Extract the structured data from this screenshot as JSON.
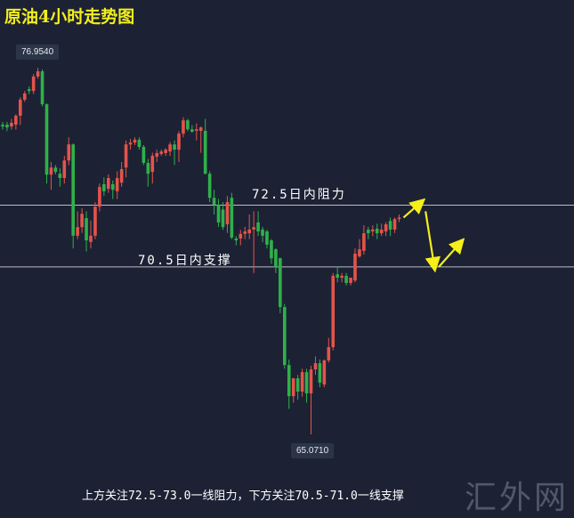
{
  "title": "原油4小时走势图",
  "watermark": "汇外网",
  "footer_note": "上方关注72.5-73.0一线阻力，下方关注70.5-71.0一线支撑",
  "colors": {
    "up": "#e5534b",
    "down": "#2eb14a",
    "arrow": "#f5ef1a",
    "level_line": "#b9bdc6",
    "background": "#1c2234"
  },
  "chart_data": {
    "type": "candlestick",
    "timeframe": "4小时",
    "ylim": [
      62.42,
      79.15
    ],
    "grid": false,
    "high_label": "76.9540",
    "low_label": "65.0710",
    "levels": [
      {
        "value": 72.5,
        "label": "72.5日内阻力"
      },
      {
        "value": 70.5,
        "label": "70.5日内支撑"
      }
    ],
    "projection_arrows": [
      {
        "from": [
          91,
          72.1
        ],
        "to": [
          95,
          72.6
        ]
      },
      {
        "from": [
          96,
          72.3
        ],
        "to": [
          98,
          70.5
        ]
      },
      {
        "from": [
          99,
          70.5
        ],
        "to": [
          104,
          71.3
        ]
      }
    ],
    "ohlc": [
      [
        75.11,
        75.2,
        74.95,
        75.05
      ],
      [
        75.11,
        75.2,
        74.9,
        75.02
      ],
      [
        75.05,
        75.3,
        74.95,
        75.17
      ],
      [
        75.11,
        75.45,
        74.95,
        75.4
      ],
      [
        75.4,
        76.0,
        75.1,
        75.92
      ],
      [
        75.92,
        76.2,
        75.85,
        76.12
      ],
      [
        76.26,
        76.35,
        76.1,
        76.2
      ],
      [
        76.2,
        76.75,
        76.1,
        76.67
      ],
      [
        76.67,
        76.954,
        76.6,
        76.84
      ],
      [
        76.84,
        76.9,
        75.7,
        75.77
      ],
      [
        75.77,
        75.8,
        73.2,
        73.49
      ],
      [
        73.49,
        73.9,
        73.0,
        73.72
      ],
      [
        73.72,
        73.8,
        73.5,
        73.58
      ],
      [
        73.52,
        73.7,
        73.1,
        73.38
      ],
      [
        73.38,
        74.1,
        73.2,
        73.95
      ],
      [
        73.95,
        74.7,
        73.8,
        74.47
      ],
      [
        74.47,
        74.5,
        71.1,
        71.51
      ],
      [
        71.51,
        72.3,
        71.4,
        71.79
      ],
      [
        71.79,
        72.4,
        71.6,
        72.22
      ],
      [
        72.08,
        72.3,
        71.0,
        71.36
      ],
      [
        71.31,
        72.0,
        71.1,
        71.51
      ],
      [
        71.51,
        72.6,
        71.4,
        72.45
      ],
      [
        72.45,
        73.2,
        72.3,
        73.09
      ],
      [
        73.18,
        73.4,
        72.8,
        72.95
      ],
      [
        73.03,
        73.5,
        72.9,
        73.38
      ],
      [
        73.18,
        73.3,
        72.7,
        73.0
      ],
      [
        72.95,
        73.6,
        72.7,
        73.38
      ],
      [
        73.23,
        73.9,
        73.1,
        73.67
      ],
      [
        73.72,
        74.6,
        73.4,
        74.47
      ],
      [
        74.47,
        74.65,
        74.3,
        74.53
      ],
      [
        74.53,
        74.7,
        74.45,
        74.62
      ],
      [
        74.62,
        74.7,
        74.3,
        74.39
      ],
      [
        74.39,
        74.45,
        73.8,
        73.87
      ],
      [
        73.87,
        74.0,
        73.1,
        73.52
      ],
      [
        73.58,
        74.2,
        73.2,
        74.1
      ],
      [
        74.07,
        74.3,
        73.9,
        74.19
      ],
      [
        74.16,
        74.3,
        74.1,
        74.24
      ],
      [
        74.19,
        74.35,
        74.1,
        74.3
      ],
      [
        74.24,
        74.55,
        74.1,
        74.47
      ],
      [
        74.47,
        74.6,
        73.8,
        74.3
      ],
      [
        74.3,
        74.9,
        73.9,
        74.82
      ],
      [
        74.82,
        75.35,
        74.7,
        75.25
      ],
      [
        75.25,
        75.3,
        74.9,
        74.96
      ],
      [
        74.96,
        75.1,
        74.85,
        74.88
      ],
      [
        74.91,
        75.15,
        74.6,
        74.96
      ],
      [
        74.91,
        75.05,
        74.2,
        75.02
      ],
      [
        74.91,
        75.3,
        73.5,
        73.52
      ],
      [
        73.52,
        73.6,
        72.6,
        72.74
      ],
      [
        72.74,
        73.0,
        72.2,
        72.51
      ],
      [
        72.51,
        72.7,
        71.8,
        71.94
      ],
      [
        72.36,
        72.6,
        71.7,
        71.79
      ],
      [
        71.88,
        72.8,
        71.6,
        72.6
      ],
      [
        72.74,
        72.9,
        71.4,
        71.45
      ],
      [
        71.42,
        71.5,
        71.2,
        71.36
      ],
      [
        71.42,
        71.7,
        71.2,
        71.57
      ],
      [
        71.57,
        71.8,
        71.4,
        71.65
      ],
      [
        71.59,
        72.2,
        71.4,
        71.71
      ],
      [
        71.71,
        72.3,
        70.3,
        71.79
      ],
      [
        71.94,
        72.3,
        71.5,
        71.65
      ],
      [
        71.71,
        71.8,
        71.3,
        71.51
      ],
      [
        71.65,
        71.7,
        71.1,
        71.22
      ],
      [
        71.36,
        71.4,
        70.6,
        70.78
      ],
      [
        71.07,
        71.1,
        70.3,
        70.5
      ],
      [
        70.78,
        70.8,
        69.0,
        69.2
      ],
      [
        69.2,
        69.3,
        67.2,
        67.32
      ],
      [
        67.32,
        67.5,
        65.9,
        66.31
      ],
      [
        66.31,
        66.9,
        66.1,
        66.89
      ],
      [
        66.89,
        67.0,
        66.2,
        66.46
      ],
      [
        66.46,
        67.2,
        66.3,
        67.09
      ],
      [
        67.09,
        67.2,
        66.1,
        66.4
      ],
      [
        66.4,
        67.3,
        65.071,
        67.18
      ],
      [
        67.18,
        67.6,
        67.0,
        67.38
      ],
      [
        67.38,
        67.5,
        66.6,
        66.75
      ],
      [
        66.69,
        67.5,
        66.6,
        67.47
      ],
      [
        67.47,
        68.2,
        67.4,
        67.9
      ],
      [
        67.9,
        70.3,
        67.8,
        70.21
      ],
      [
        70.26,
        70.5,
        70.0,
        70.15
      ],
      [
        70.15,
        70.3,
        70.0,
        70.21
      ],
      [
        70.21,
        70.3,
        69.9,
        69.98
      ],
      [
        69.98,
        70.1,
        69.9,
        70.15
      ],
      [
        70.06,
        71.1,
        70.0,
        70.93
      ],
      [
        70.84,
        71.4,
        70.8,
        71.07
      ],
      [
        71.02,
        71.85,
        70.9,
        71.59
      ],
      [
        71.71,
        71.8,
        71.4,
        71.59
      ],
      [
        71.65,
        71.85,
        71.5,
        71.71
      ],
      [
        71.74,
        71.9,
        71.4,
        71.59
      ],
      [
        71.59,
        71.9,
        71.5,
        71.71
      ],
      [
        71.65,
        71.95,
        71.5,
        71.88
      ],
      [
        71.99,
        72.1,
        71.5,
        71.71
      ],
      [
        71.71,
        72.1,
        71.6,
        72.05
      ],
      [
        72.05,
        72.2,
        71.95,
        72.1
      ]
    ]
  }
}
